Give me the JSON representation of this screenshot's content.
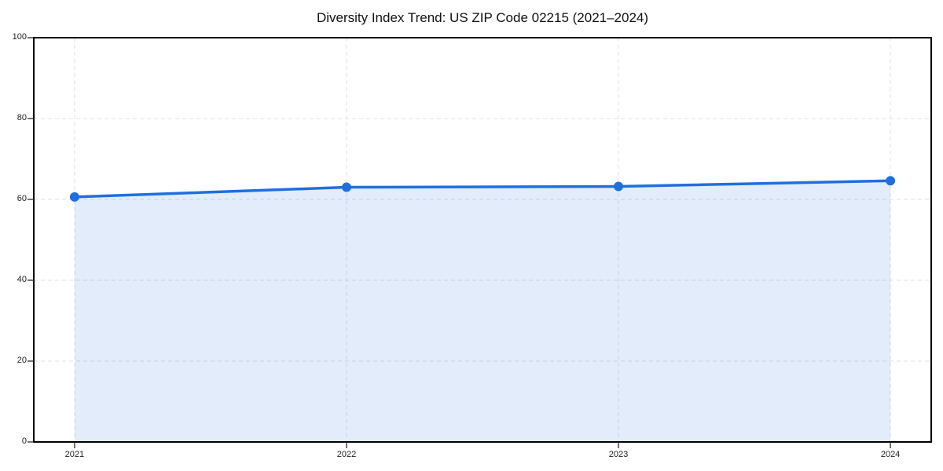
{
  "figure": {
    "title": "Diversity Index Trend: US ZIP Code 02215 (2021–2024)"
  },
  "chart_data": {
    "type": "line",
    "title": "Diversity Index Trend: US ZIP Code 02215 (2021–2024)",
    "x": [
      2021,
      2022,
      2023,
      2024
    ],
    "x_tick_labels": [
      "2021",
      "2022",
      "2023",
      "2024"
    ],
    "series": [
      {
        "name": "Diversity Index",
        "values": [
          60.6,
          63.0,
          63.2,
          64.6
        ]
      }
    ],
    "xlabel": "",
    "ylabel": "",
    "xlim": [
      2020.85,
      2024.15
    ],
    "ylim": [
      0,
      100
    ],
    "y_ticks": [
      0,
      20,
      40,
      60,
      80,
      100
    ],
    "grid": true,
    "grid_style": "dashed",
    "legend": "none",
    "area_fill": true,
    "fill_opacity": 0.13,
    "marker": "circle",
    "colors": {
      "line": "#1f6fe0",
      "marker": "#1f6fe0",
      "fill_base": "#1f6fe0",
      "grid": "#e1e1e1",
      "frame": "#000000",
      "tick_label": "#1f1f1f",
      "title": "#111111",
      "background": "#ffffff"
    }
  }
}
